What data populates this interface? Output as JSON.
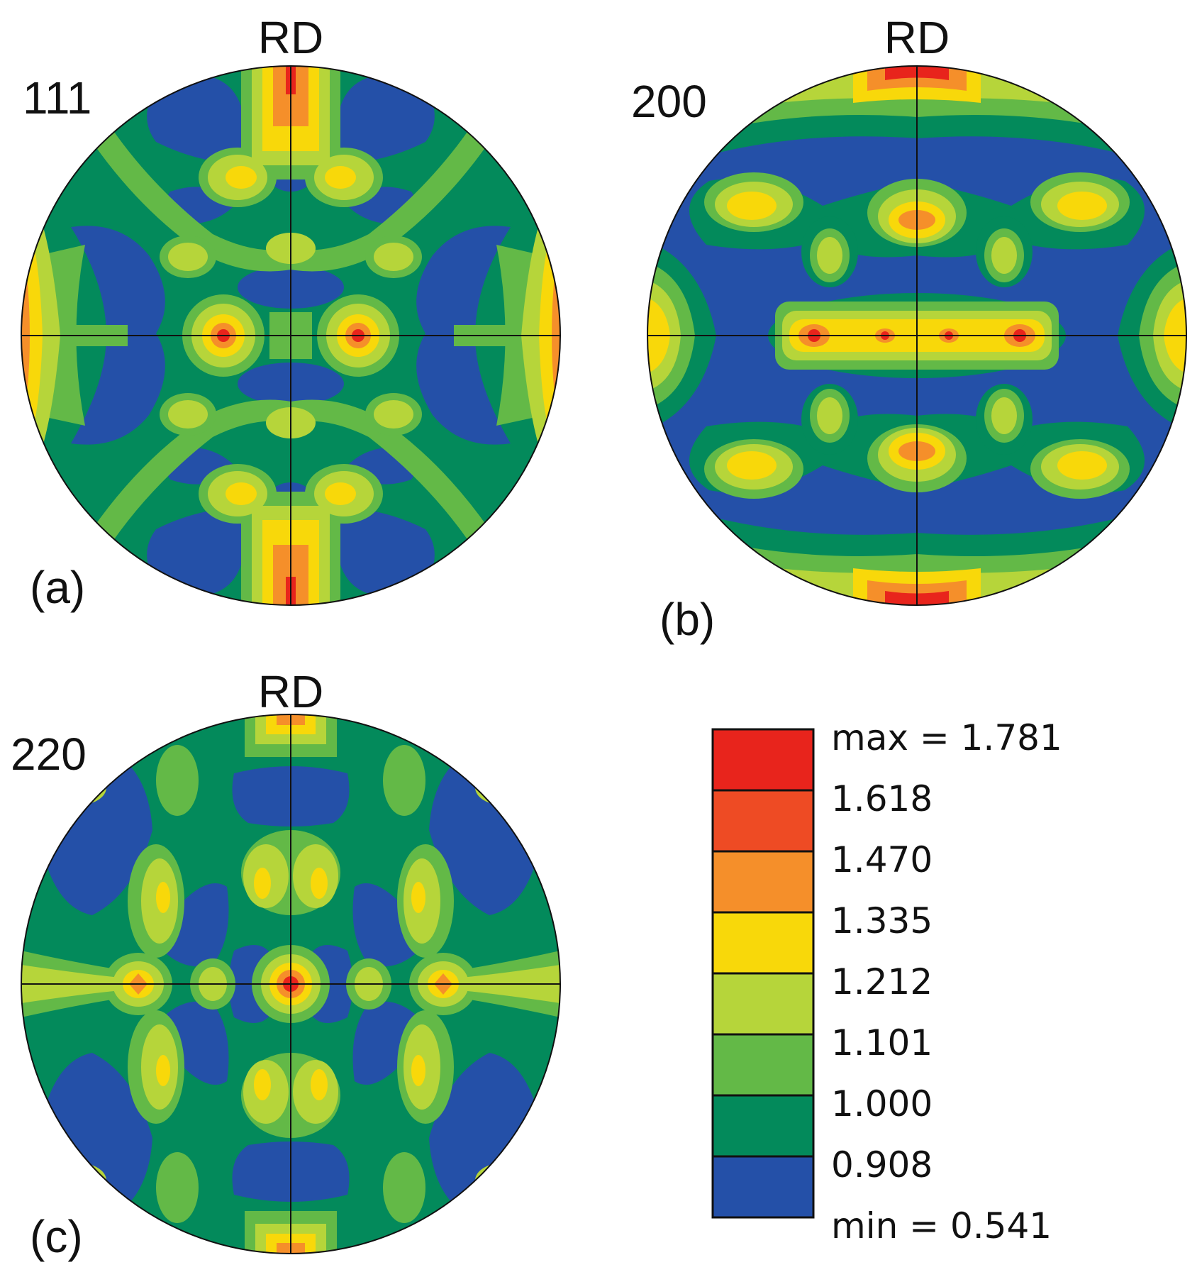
{
  "panels": {
    "a": {
      "hkl": "111",
      "axis": "RD",
      "tag": "(a)"
    },
    "b": {
      "hkl": "200",
      "axis": "RD",
      "tag": "(b)"
    },
    "c": {
      "hkl": "220",
      "axis": "RD",
      "tag": "(c)"
    }
  },
  "legend": {
    "max_label": "max = 1.781",
    "min_label": "min = 0.541",
    "levels": [
      {
        "label": "1.618",
        "color": "#e8241c"
      },
      {
        "label": "1.470",
        "color": "#ee4b24"
      },
      {
        "label": "1.335",
        "color": "#f58f2a"
      },
      {
        "label": "1.212",
        "color": "#f8d80a"
      },
      {
        "label": "1.101",
        "color": "#b6d53a"
      },
      {
        "label": "1.000",
        "color": "#63b947"
      },
      {
        "label": "0.908",
        "color": "#038a5b"
      }
    ],
    "min_color": "#2450a8"
  },
  "colors": {
    "blue": "#2450a8",
    "dark_green": "#038a5b",
    "green": "#63b947",
    "light_green": "#b6d53a",
    "yellow": "#f8d80a",
    "orange": "#f58f2a",
    "red_orange": "#ee4b24",
    "red": "#e8241c"
  }
}
